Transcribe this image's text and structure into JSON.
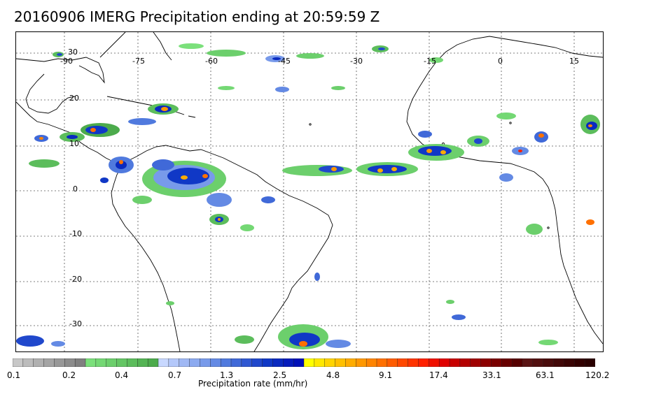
{
  "title": "20160906 IMERG Precipitation ending at 20:59:59 Z",
  "longitude_ticks": [
    "-90",
    "-75",
    "-60",
    "-45",
    "-30",
    "-15",
    "0",
    "15"
  ],
  "latitude_ticks": [
    "30",
    "20",
    "10",
    "0",
    "-10",
    "-20",
    "-30"
  ],
  "colorbar": {
    "title": "Precipitation rate (mm/hr)",
    "tick_labels": [
      "0.1",
      "0.2",
      "0.4",
      "0.7",
      "1.3",
      "2.5",
      "4.8",
      "9.1",
      "17.4",
      "33.1",
      "63.1",
      "120.2"
    ],
    "colors": [
      "#c8c8c8",
      "#bcbcbc",
      "#b0b0b0",
      "#a4a4a4",
      "#989898",
      "#8c8c8c",
      "#808080",
      "#7be07b",
      "#74d874",
      "#6ccf6c",
      "#64c664",
      "#5cbd5c",
      "#54b454",
      "#4cab4c",
      "#c8d8ff",
      "#b4c8fa",
      "#a0b8f4",
      "#8caaf0",
      "#789aea",
      "#648ae4",
      "#507ade",
      "#4069d8",
      "#3058d2",
      "#2048cc",
      "#1038c6",
      "#0a2ac0",
      "#061cbc",
      "#0010b8",
      "#ffff00",
      "#ffe800",
      "#ffd400",
      "#ffc000",
      "#ffac00",
      "#ff9800",
      "#ff8400",
      "#ff7000",
      "#ff5c00",
      "#ff4800",
      "#ff3400",
      "#ff2000",
      "#f01000",
      "#e00000",
      "#c80000",
      "#b40000",
      "#a00000",
      "#8c0000",
      "#7a0000",
      "#680000",
      "#560000",
      "#5a1414",
      "#521010",
      "#4a0c0c",
      "#420808",
      "#3a0404",
      "#320000",
      "#2a0000"
    ]
  }
}
